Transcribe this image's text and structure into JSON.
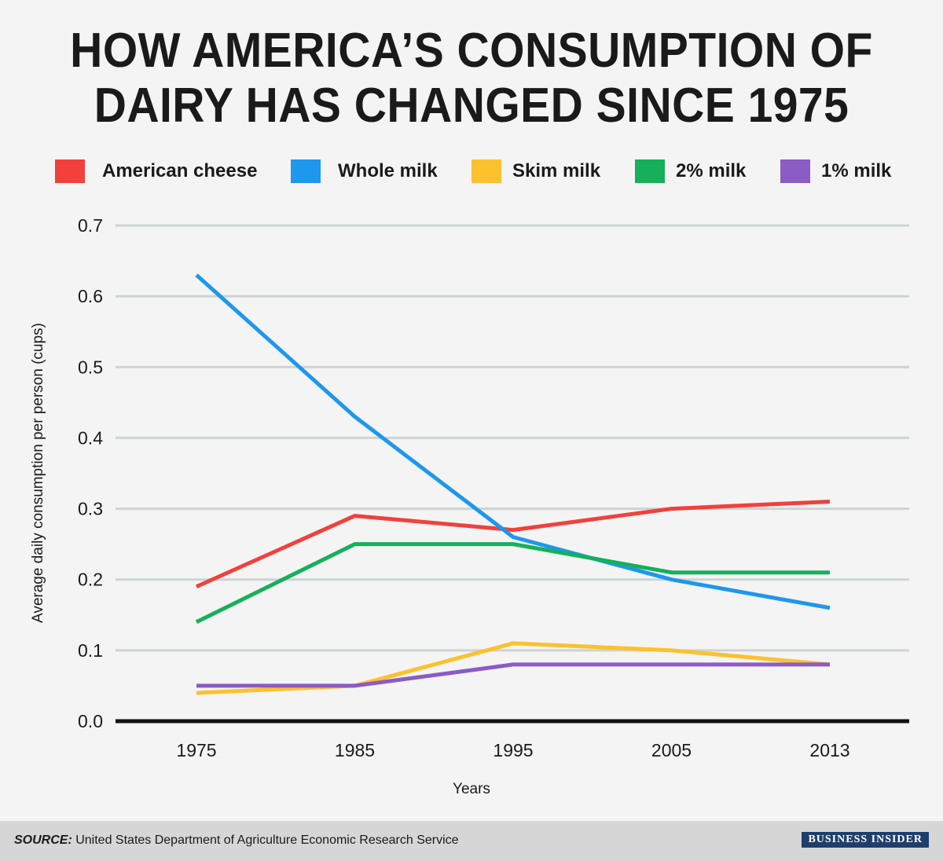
{
  "title": {
    "line1": "HOW AMERICA’S CONSUMPTION OF",
    "line2": "DAIRY HAS CHANGED SINCE 1975"
  },
  "footer": {
    "source_key": "SOURCE:",
    "source_text": " United States Department of Agriculture Economic Research Service",
    "brand": "BUSINESS INSIDER"
  },
  "chart_data": {
    "type": "line",
    "title": "HOW AMERICA’S CONSUMPTION OF DAIRY HAS CHANGED SINCE 1975",
    "xlabel": "Years",
    "ylabel": "Average daily consumption per person (cups)",
    "categories": [
      "1975",
      "1985",
      "1995",
      "2005",
      "2013"
    ],
    "ylim": [
      0,
      0.7
    ],
    "yticks": [
      "0.0",
      "0.1",
      "0.2",
      "0.3",
      "0.4",
      "0.5",
      "0.6",
      "0.7"
    ],
    "grid": true,
    "legend_position": "top",
    "series": [
      {
        "name": "American cheese",
        "color": "#f2403c",
        "values": [
          0.19,
          0.29,
          0.27,
          0.3,
          0.31
        ]
      },
      {
        "name": "Whole milk",
        "color": "#1e97ee",
        "values": [
          0.63,
          0.43,
          0.26,
          0.2,
          0.16
        ]
      },
      {
        "name": "Skim milk",
        "color": "#fcc12d",
        "values": [
          0.04,
          0.05,
          0.11,
          0.1,
          0.08
        ]
      },
      {
        "name": "2% milk",
        "color": "#16b05a",
        "values": [
          0.14,
          0.25,
          0.25,
          0.21,
          0.21
        ]
      },
      {
        "name": "1% milk",
        "color": "#8b5bc6",
        "values": [
          0.05,
          0.05,
          0.08,
          0.08,
          0.08
        ]
      }
    ]
  }
}
